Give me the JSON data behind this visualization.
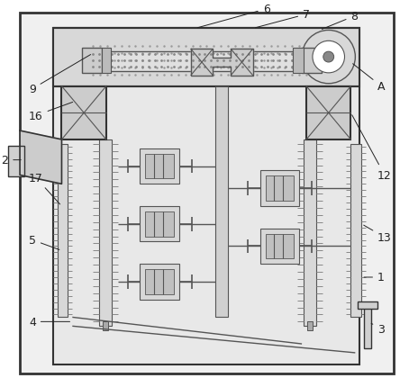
{
  "lc": "#555555",
  "dc": "#333333",
  "fc_light": "#e8e8e8",
  "fc_gray": "#d0d0d0",
  "fc_dark": "#b0b0b0",
  "white": "#ffffff",
  "dot_color": "#aaaaaa",
  "hatch_color": "#888888"
}
